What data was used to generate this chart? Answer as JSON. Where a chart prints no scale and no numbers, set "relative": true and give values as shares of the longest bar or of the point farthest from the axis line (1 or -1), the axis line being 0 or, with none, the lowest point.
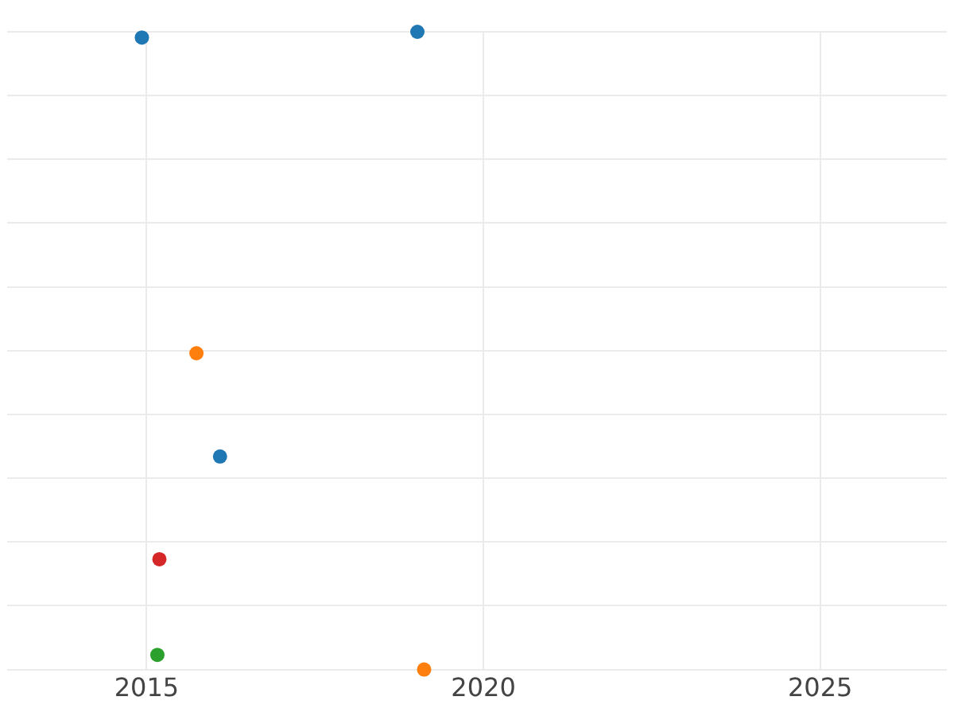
{
  "chart_data": {
    "type": "scatter",
    "relative": true,
    "grid": true,
    "legend": false,
    "marker": "circle",
    "xlim": [
      2012.93,
      2026.88
    ],
    "xticks": [
      2015,
      2020,
      2025
    ],
    "series": [
      {
        "color": "#1f77b4",
        "x": [
          2014.93,
          2019.02,
          2016.09
        ],
        "values": [
          0.991,
          1,
          0.334
        ]
      },
      {
        "color": "#ff7f0e",
        "x": [
          2015.74,
          2019.12
        ],
        "values": [
          0.496,
          0
        ]
      },
      {
        "color": "#d62728",
        "x": [
          2015.19
        ],
        "values": [
          0.173
        ]
      },
      {
        "color": "#2ca02c",
        "x": [
          2015.16
        ],
        "values": [
          0.023
        ]
      }
    ]
  }
}
